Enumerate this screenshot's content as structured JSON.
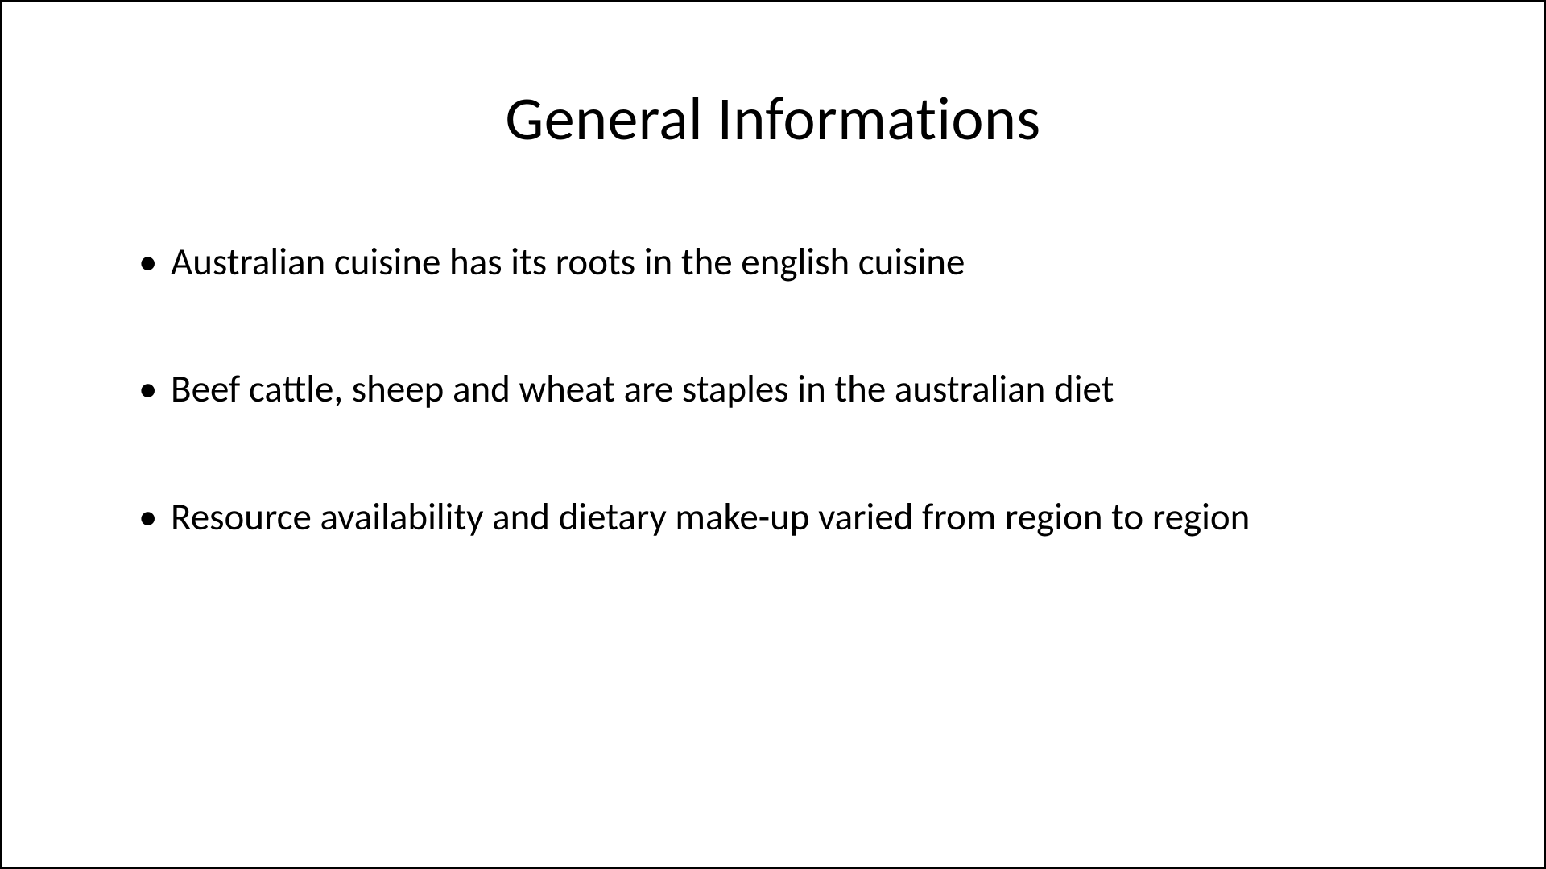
{
  "slide": {
    "title": "General Informations",
    "bullets": [
      "Australian cuisine has its roots in the english cuisine",
      "Beef cattle, sheep and wheat are staples in the australian diet",
      "Resource availability and dietary make-up varied from region to region"
    ],
    "background_color": "#ffffff",
    "text_color": "#000000",
    "title_fontsize": 76,
    "bullet_fontsize": 47
  }
}
